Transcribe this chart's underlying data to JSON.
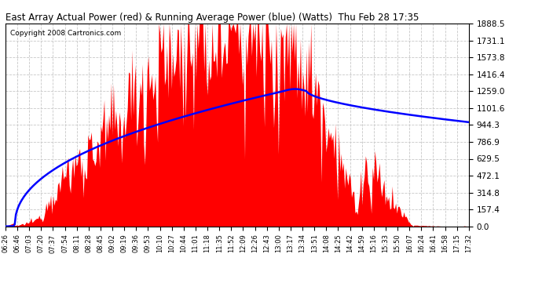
{
  "title": "East Array Actual Power (red) & Running Average Power (blue) (Watts)  Thu Feb 28 17:35",
  "copyright": "Copyright 2008 Cartronics.com",
  "ylabel_values": [
    0.0,
    157.4,
    314.8,
    472.1,
    629.5,
    786.9,
    944.3,
    1101.6,
    1259.0,
    1416.4,
    1573.8,
    1731.1,
    1888.5
  ],
  "x_labels": [
    "06:26",
    "06:46",
    "07:03",
    "07:20",
    "07:37",
    "07:54",
    "08:11",
    "08:28",
    "08:45",
    "09:02",
    "09:19",
    "09:36",
    "09:53",
    "10:10",
    "10:27",
    "10:44",
    "11:01",
    "11:18",
    "11:35",
    "11:52",
    "12:09",
    "12:26",
    "12:43",
    "13:00",
    "13:17",
    "13:34",
    "13:51",
    "14:08",
    "14:25",
    "14:42",
    "14:59",
    "15:16",
    "15:33",
    "15:50",
    "16:07",
    "16:24",
    "16:41",
    "16:58",
    "17:15",
    "17:32"
  ],
  "ymax": 1888.5,
  "bg_color": "#ffffff",
  "fill_color": "#ff0000",
  "avg_color": "#0000ff",
  "grid_color": "#c8c8c8",
  "title_color": "#000000",
  "copyright_color": "#000000"
}
